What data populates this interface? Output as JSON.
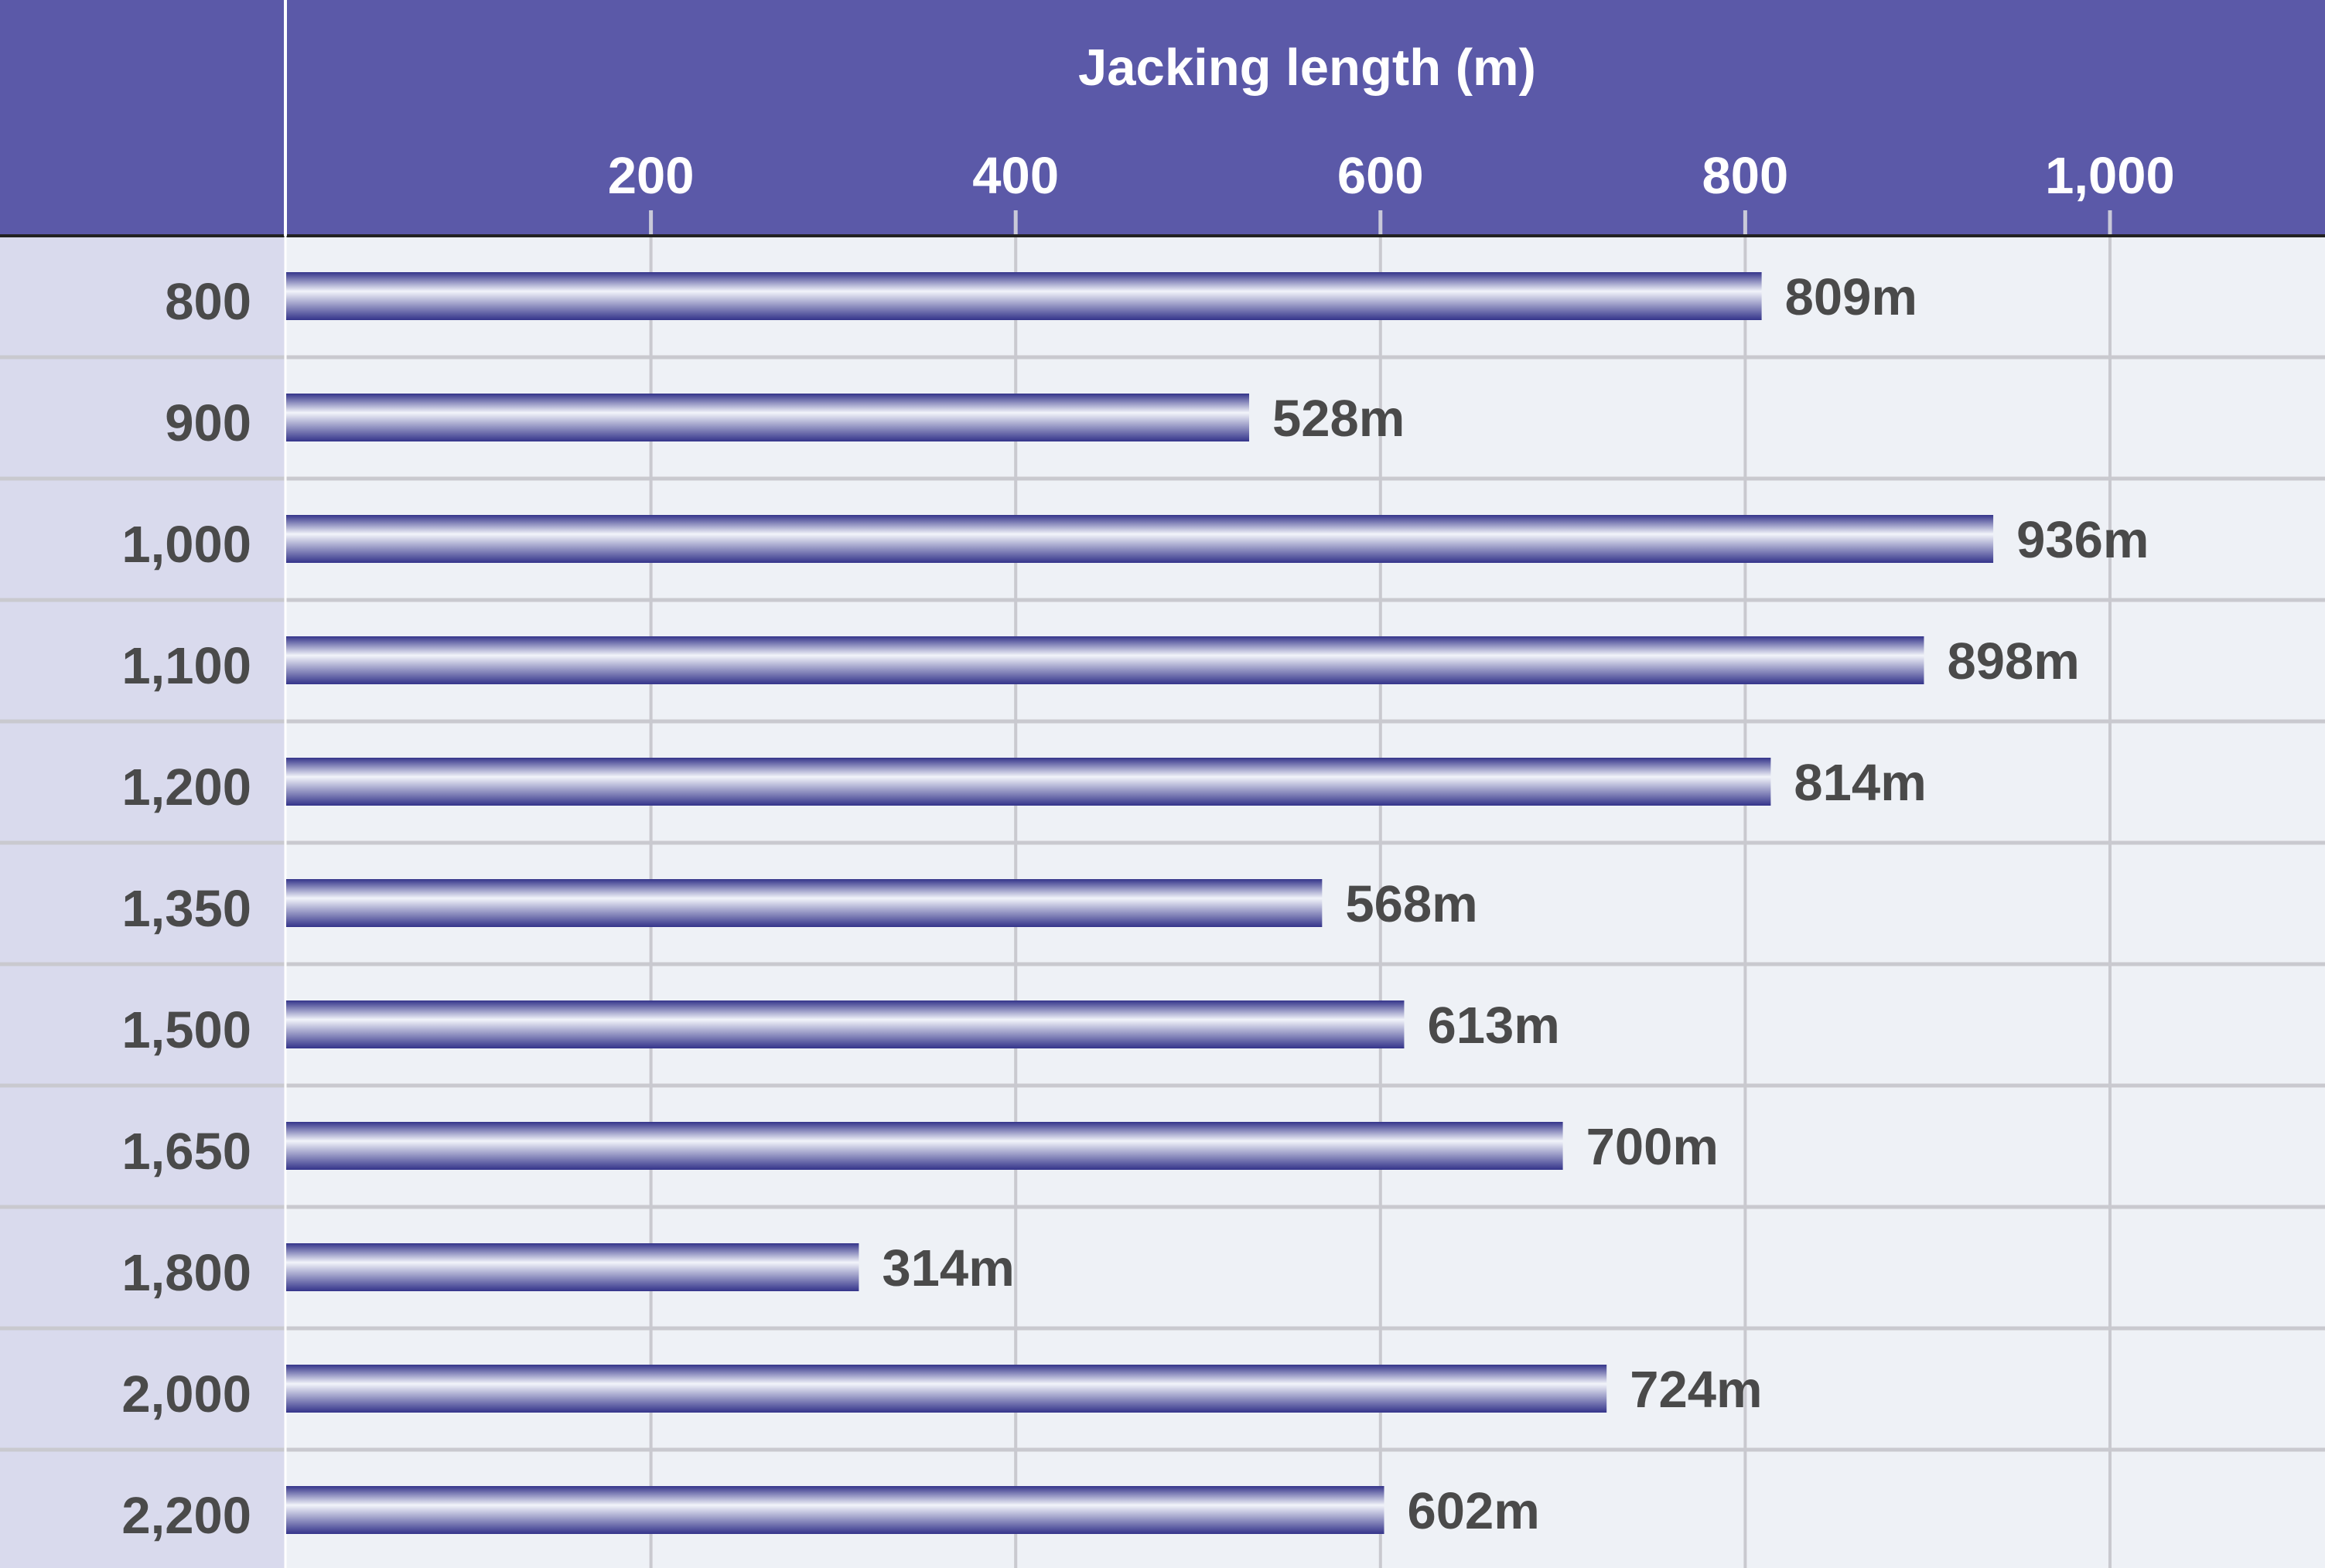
{
  "chart_data": {
    "type": "bar",
    "orientation": "horizontal",
    "xlabel": "Jacking length (m)",
    "x_ticks": [
      "200",
      "400",
      "600",
      "800",
      "1,000"
    ],
    "x_tick_values": [
      200,
      400,
      600,
      800,
      1000
    ],
    "xlim": [
      0,
      1120
    ],
    "categories": [
      "800",
      "900",
      "1,000",
      "1,100",
      "1,200",
      "1,350",
      "1,500",
      "1,650",
      "1,800",
      "2,000",
      "2,200"
    ],
    "values": [
      809,
      528,
      936,
      898,
      814,
      568,
      613,
      700,
      314,
      724,
      602
    ],
    "value_labels": [
      "809m",
      "528m",
      "936m",
      "898m",
      "814m",
      "568m",
      "613m",
      "700m",
      "314m",
      "724m",
      "602m"
    ],
    "grid": true,
    "axis_position": "top",
    "colors": {
      "header": "#5b59a8",
      "plot_bg": "#eef1f6",
      "category_bg": "#d9daed",
      "bar_dark": "#34348a",
      "bar_light": "#f2f4fa",
      "grid": "#c9c9cf",
      "text": "#4a4a4a"
    }
  }
}
